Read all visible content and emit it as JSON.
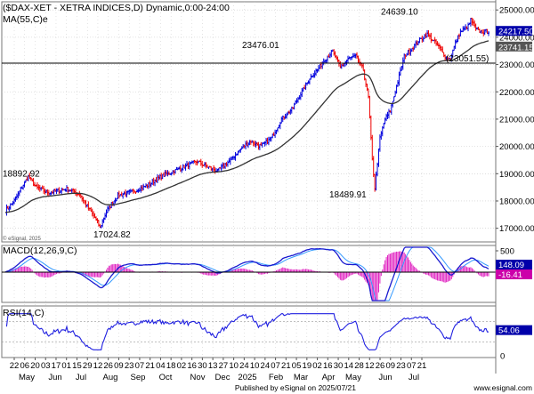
{
  "header": {
    "title": "($DAX-XET - XETRA INDICES,D) Dynamic,0:00-24:00",
    "ma_label": "MA(55,C)e"
  },
  "colors": {
    "up": "#0000dd",
    "down": "#ee0000",
    "ma": "#333333",
    "macd_line": "#1a1ad0",
    "macd_hist": "#e020c0",
    "rsi": "#2020e0",
    "grid": "#c8c8c8",
    "current_tag": "#0000aa"
  },
  "chart_data": [
    {
      "type": "candlestick",
      "name": "price",
      "y_ticks": [
        "25000.00",
        "24000.00",
        "23000.00",
        "22000.00",
        "21000.00",
        "20000.00",
        "19000.00",
        "18000.00",
        "17000.00"
      ],
      "ylim": [
        16500,
        25300
      ],
      "annotations": [
        {
          "text": "18892.92",
          "value": 18892.92
        },
        {
          "text": "17024.82",
          "value": 17024.82
        },
        {
          "text": "23476.01",
          "value": 23476.01
        },
        {
          "text": "18489.91",
          "value": 18489.91
        },
        {
          "text": "24639.10",
          "value": 24639.1
        }
      ],
      "horizontal_line": {
        "value": 23051.55,
        "label": "(23051.55)"
      },
      "current_value": "24217.50",
      "ma_value": "23741.15",
      "watermark": "© eSignal, 2025"
    },
    {
      "type": "line",
      "name": "MACD(12,26,9,C)",
      "label": "MACD(12,26,9,C)",
      "y_ticks": [
        "500",
        "0"
      ],
      "current_value": "148.09",
      "histogram_value": "-16.41"
    },
    {
      "type": "line",
      "name": "RSI(14,C)",
      "label": "RSI(14,C)",
      "y_ticks": [
        "50",
        "0"
      ],
      "current_value": "54.06"
    }
  ],
  "x_axis": {
    "day_labels": [
      "22",
      "06",
      "20",
      "03",
      "17",
      "01",
      "15",
      "29",
      "12",
      "26",
      "09",
      "23",
      "07",
      "21",
      "04",
      "18",
      "02",
      "16",
      "30",
      "13",
      "27",
      "10",
      "24",
      "10",
      "24",
      "07",
      "21",
      "05",
      "19",
      "02",
      "16",
      "30",
      "14",
      "28",
      "12",
      "26",
      "09",
      "23",
      "07",
      "21"
    ],
    "month_labels": [
      "May",
      "Jun",
      "Jul",
      "Aug",
      "Sep",
      "Oct",
      "Nov",
      "Dec",
      "2025",
      "Feb",
      "Mar",
      "Apr",
      "May",
      "Jun",
      "Jul"
    ]
  },
  "footer": "Published by eSignal on 2025/07/21",
  "footer_right": "www.esignal.com"
}
